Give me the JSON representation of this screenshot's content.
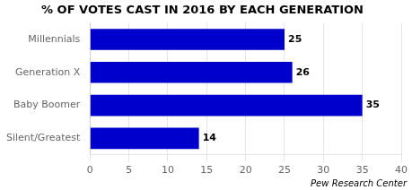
{
  "chart_data": {
    "type": "bar",
    "orientation": "horizontal",
    "title": "% OF VOTES CAST IN 2016 BY EACH GENERATION",
    "categories": [
      "Millennials",
      "Generation X",
      "Baby Boomer",
      "Silent/Greatest"
    ],
    "values": [
      25,
      26,
      35,
      14
    ],
    "color": "#0000cc",
    "xlim": [
      0,
      40
    ],
    "xticks": [
      0,
      5,
      10,
      15,
      20,
      25,
      30,
      35,
      40
    ],
    "grid": true,
    "data_labels": true,
    "annotations": [
      "Pew Research Center"
    ]
  }
}
